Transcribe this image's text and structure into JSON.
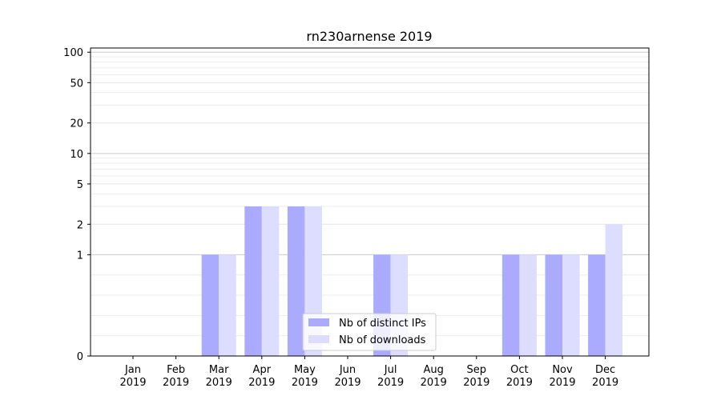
{
  "chart_data": {
    "type": "bar",
    "title": "rn230arnense 2019",
    "xlabel": "",
    "ylabel": "",
    "y_scale": "symlog",
    "ylim": [
      0,
      110
    ],
    "y_ticks": [
      {
        "value": 0,
        "label": "0"
      },
      {
        "value": 1,
        "label": "1"
      },
      {
        "value": 2,
        "label": "2"
      },
      {
        "value": 5,
        "label": "5"
      },
      {
        "value": 10,
        "label": "10"
      },
      {
        "value": 20,
        "label": "20"
      },
      {
        "value": 50,
        "label": "50"
      },
      {
        "value": 100,
        "label": "100"
      }
    ],
    "categories": [
      {
        "month": "Jan",
        "year": "2019"
      },
      {
        "month": "Feb",
        "year": "2019"
      },
      {
        "month": "Mar",
        "year": "2019"
      },
      {
        "month": "Apr",
        "year": "2019"
      },
      {
        "month": "May",
        "year": "2019"
      },
      {
        "month": "Jun",
        "year": "2019"
      },
      {
        "month": "Jul",
        "year": "2019"
      },
      {
        "month": "Aug",
        "year": "2019"
      },
      {
        "month": "Sep",
        "year": "2019"
      },
      {
        "month": "Oct",
        "year": "2019"
      },
      {
        "month": "Nov",
        "year": "2019"
      },
      {
        "month": "Dec",
        "year": "2019"
      }
    ],
    "series": [
      {
        "name": "Nb of distinct IPs",
        "color": "#aaaaff",
        "values": [
          0,
          0,
          1,
          3,
          3,
          0,
          1,
          0,
          0,
          1,
          1,
          1
        ]
      },
      {
        "name": "Nb of downloads",
        "color": "#ddddff",
        "values": [
          0,
          0,
          1,
          3,
          3,
          0,
          1,
          0,
          0,
          1,
          1,
          2
        ]
      }
    ],
    "grid": true,
    "legend_position": "lower-center"
  }
}
